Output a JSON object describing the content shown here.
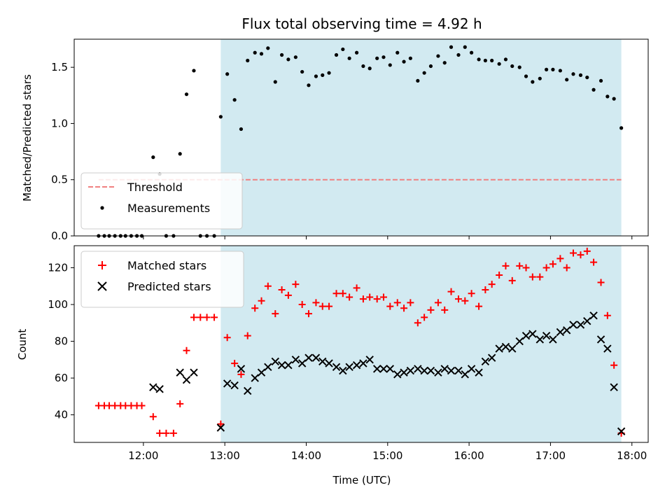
{
  "chart_data": {
    "type": "scatter",
    "title": "Flux total observing time = 4.92 h",
    "xlabel": "Time (UTC)",
    "x_tick_labels": [
      "12:00",
      "13:00",
      "14:00",
      "15:00",
      "16:00",
      "17:00",
      "18:00"
    ],
    "x_tick_hours": [
      12,
      13,
      14,
      15,
      16,
      17,
      18
    ],
    "xlim_hours": [
      11.15,
      18.2
    ],
    "observing_window_hours": [
      12.95,
      17.87
    ],
    "window_color": "#add8e6",
    "panels": [
      {
        "ylabel": "Matched/Predicted stars",
        "ylim": [
          0,
          1.75
        ],
        "y_ticks": [
          0.0,
          0.5,
          1.0,
          1.5
        ],
        "y_tick_labels": [
          "0.0",
          "0.5",
          "1.0",
          "1.5"
        ],
        "legend_position": "lower-left",
        "threshold": {
          "name": "Threshold",
          "value": 0.5,
          "x_range_hours": [
            11.45,
            17.87
          ],
          "color": "#f08080",
          "dash": "dashed"
        },
        "series": [
          {
            "name": "Measurements",
            "marker": "dot",
            "color": "#000000",
            "points": [
              [
                11.45,
                0.0
              ],
              [
                11.52,
                0.0
              ],
              [
                11.58,
                0.0
              ],
              [
                11.65,
                0.0
              ],
              [
                11.72,
                0.0
              ],
              [
                11.78,
                0.0
              ],
              [
                11.85,
                0.0
              ],
              [
                11.92,
                0.0
              ],
              [
                11.98,
                0.0
              ],
              [
                12.12,
                0.7
              ],
              [
                12.2,
                0.55
              ],
              [
                12.28,
                0.0
              ],
              [
                12.37,
                0.0
              ],
              [
                12.45,
                0.73
              ],
              [
                12.53,
                1.26
              ],
              [
                12.62,
                1.47
              ],
              [
                12.7,
                0.0
              ],
              [
                12.78,
                0.0
              ],
              [
                12.87,
                0.0
              ],
              [
                12.95,
                1.06
              ],
              [
                13.03,
                1.44
              ],
              [
                13.12,
                1.21
              ],
              [
                13.2,
                0.95
              ],
              [
                13.28,
                1.56
              ],
              [
                13.37,
                1.63
              ],
              [
                13.45,
                1.62
              ],
              [
                13.53,
                1.67
              ],
              [
                13.62,
                1.37
              ],
              [
                13.7,
                1.61
              ],
              [
                13.78,
                1.57
              ],
              [
                13.87,
                1.59
              ],
              [
                13.95,
                1.46
              ],
              [
                14.03,
                1.34
              ],
              [
                14.12,
                1.42
              ],
              [
                14.2,
                1.43
              ],
              [
                14.28,
                1.45
              ],
              [
                14.37,
                1.61
              ],
              [
                14.45,
                1.66
              ],
              [
                14.53,
                1.58
              ],
              [
                14.62,
                1.63
              ],
              [
                14.7,
                1.51
              ],
              [
                14.78,
                1.49
              ],
              [
                14.87,
                1.58
              ],
              [
                14.95,
                1.59
              ],
              [
                15.03,
                1.52
              ],
              [
                15.12,
                1.63
              ],
              [
                15.2,
                1.55
              ],
              [
                15.28,
                1.58
              ],
              [
                15.37,
                1.38
              ],
              [
                15.45,
                1.45
              ],
              [
                15.53,
                1.51
              ],
              [
                15.62,
                1.6
              ],
              [
                15.7,
                1.54
              ],
              [
                15.78,
                1.68
              ],
              [
                15.87,
                1.61
              ],
              [
                15.95,
                1.68
              ],
              [
                16.03,
                1.63
              ],
              [
                16.12,
                1.57
              ],
              [
                16.2,
                1.56
              ],
              [
                16.28,
                1.56
              ],
              [
                16.37,
                1.53
              ],
              [
                16.45,
                1.57
              ],
              [
                16.53,
                1.51
              ],
              [
                16.62,
                1.5
              ],
              [
                16.7,
                1.42
              ],
              [
                16.78,
                1.37
              ],
              [
                16.87,
                1.4
              ],
              [
                16.95,
                1.48
              ],
              [
                17.03,
                1.48
              ],
              [
                17.12,
                1.47
              ],
              [
                17.2,
                1.39
              ],
              [
                17.28,
                1.44
              ],
              [
                17.37,
                1.43
              ],
              [
                17.45,
                1.41
              ],
              [
                17.53,
                1.3
              ],
              [
                17.62,
                1.38
              ],
              [
                17.7,
                1.24
              ],
              [
                17.78,
                1.22
              ],
              [
                17.87,
                0.96
              ]
            ]
          }
        ]
      },
      {
        "ylabel": "Count",
        "ylim": [
          25,
          132
        ],
        "y_ticks": [
          40,
          60,
          80,
          100,
          120
        ],
        "y_tick_labels": [
          "40",
          "60",
          "80",
          "100",
          "120"
        ],
        "legend_position": "top-left",
        "series": [
          {
            "name": "Matched stars",
            "marker": "plus",
            "color": "#ff0000",
            "points": [
              [
                11.45,
                45
              ],
              [
                11.52,
                45
              ],
              [
                11.58,
                45
              ],
              [
                11.65,
                45
              ],
              [
                11.72,
                45
              ],
              [
                11.78,
                45
              ],
              [
                11.85,
                45
              ],
              [
                11.92,
                45
              ],
              [
                11.98,
                45
              ],
              [
                12.12,
                39
              ],
              [
                12.2,
                30
              ],
              [
                12.28,
                30
              ],
              [
                12.37,
                30
              ],
              [
                12.45,
                46
              ],
              [
                12.53,
                75
              ],
              [
                12.62,
                93
              ],
              [
                12.7,
                93
              ],
              [
                12.78,
                93
              ],
              [
                12.87,
                93
              ],
              [
                12.95,
                35
              ],
              [
                13.03,
                82
              ],
              [
                13.12,
                68
              ],
              [
                13.2,
                62
              ],
              [
                13.28,
                83
              ],
              [
                13.37,
                98
              ],
              [
                13.45,
                102
              ],
              [
                13.53,
                110
              ],
              [
                13.62,
                95
              ],
              [
                13.7,
                108
              ],
              [
                13.78,
                105
              ],
              [
                13.87,
                111
              ],
              [
                13.95,
                100
              ],
              [
                14.03,
                95
              ],
              [
                14.12,
                101
              ],
              [
                14.2,
                99
              ],
              [
                14.28,
                99
              ],
              [
                14.37,
                106
              ],
              [
                14.45,
                106
              ],
              [
                14.53,
                104
              ],
              [
                14.62,
                109
              ],
              [
                14.7,
                103
              ],
              [
                14.78,
                104
              ],
              [
                14.87,
                103
              ],
              [
                14.95,
                104
              ],
              [
                15.03,
                99
              ],
              [
                15.12,
                101
              ],
              [
                15.2,
                98
              ],
              [
                15.28,
                101
              ],
              [
                15.37,
                90
              ],
              [
                15.45,
                93
              ],
              [
                15.53,
                97
              ],
              [
                15.62,
                101
              ],
              [
                15.7,
                97
              ],
              [
                15.78,
                107
              ],
              [
                15.87,
                103
              ],
              [
                15.95,
                102
              ],
              [
                16.03,
                106
              ],
              [
                16.12,
                99
              ],
              [
                16.2,
                108
              ],
              [
                16.28,
                111
              ],
              [
                16.37,
                116
              ],
              [
                16.45,
                121
              ],
              [
                16.53,
                113
              ],
              [
                16.62,
                121
              ],
              [
                16.7,
                120
              ],
              [
                16.78,
                115
              ],
              [
                16.87,
                115
              ],
              [
                16.95,
                120
              ],
              [
                17.03,
                122
              ],
              [
                17.12,
                125
              ],
              [
                17.2,
                120
              ],
              [
                17.28,
                128
              ],
              [
                17.37,
                127
              ],
              [
                17.45,
                129
              ],
              [
                17.53,
                123
              ],
              [
                17.62,
                112
              ],
              [
                17.7,
                94
              ],
              [
                17.78,
                67
              ],
              [
                17.87,
                30
              ]
            ]
          },
          {
            "name": "Predicted stars",
            "marker": "x",
            "color": "#000000",
            "points": [
              [
                12.12,
                55
              ],
              [
                12.2,
                54
              ],
              [
                12.45,
                63
              ],
              [
                12.53,
                59
              ],
              [
                12.62,
                63
              ],
              [
                12.95,
                33
              ],
              [
                13.03,
                57
              ],
              [
                13.12,
                56
              ],
              [
                13.2,
                65
              ],
              [
                13.28,
                53
              ],
              [
                13.37,
                60
              ],
              [
                13.45,
                63
              ],
              [
                13.53,
                66
              ],
              [
                13.62,
                69
              ],
              [
                13.7,
                67
              ],
              [
                13.78,
                67
              ],
              [
                13.87,
                70
              ],
              [
                13.95,
                68
              ],
              [
                14.03,
                71
              ],
              [
                14.12,
                71
              ],
              [
                14.2,
                69
              ],
              [
                14.28,
                68
              ],
              [
                14.37,
                66
              ],
              [
                14.45,
                64
              ],
              [
                14.53,
                66
              ],
              [
                14.62,
                67
              ],
              [
                14.7,
                68
              ],
              [
                14.78,
                70
              ],
              [
                14.87,
                65
              ],
              [
                14.95,
                65
              ],
              [
                15.03,
                65
              ],
              [
                15.12,
                62
              ],
              [
                15.2,
                63
              ],
              [
                15.28,
                64
              ],
              [
                15.37,
                65
              ],
              [
                15.45,
                64
              ],
              [
                15.53,
                64
              ],
              [
                15.62,
                63
              ],
              [
                15.7,
                65
              ],
              [
                15.78,
                64
              ],
              [
                15.87,
                64
              ],
              [
                15.95,
                62
              ],
              [
                16.03,
                65
              ],
              [
                16.12,
                63
              ],
              [
                16.2,
                69
              ],
              [
                16.28,
                71
              ],
              [
                16.37,
                76
              ],
              [
                16.45,
                77
              ],
              [
                16.53,
                76
              ],
              [
                16.62,
                80
              ],
              [
                16.7,
                83
              ],
              [
                16.78,
                84
              ],
              [
                16.87,
                81
              ],
              [
                16.95,
                83
              ],
              [
                17.03,
                81
              ],
              [
                17.12,
                85
              ],
              [
                17.2,
                86
              ],
              [
                17.28,
                89
              ],
              [
                17.37,
                89
              ],
              [
                17.45,
                91
              ],
              [
                17.53,
                94
              ],
              [
                17.62,
                81
              ],
              [
                17.7,
                76
              ],
              [
                17.78,
                55
              ],
              [
                17.87,
                31
              ]
            ]
          }
        ]
      }
    ]
  }
}
